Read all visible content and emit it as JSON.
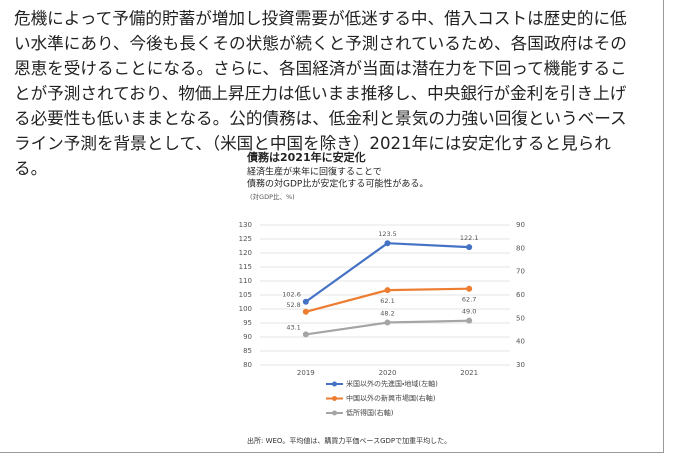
{
  "paragraph": {
    "lines": [
      "危機によって予備的貯蓄が増加し投資需要が低迷する中、借入コストは歴史的に低",
      "い水準にあり、今後も長くその状態が続くと予測されているため、各国政府はその",
      "恩恵を受けることになる。さらに、各国経済が当面は潜在力を下回って機能するこ",
      "とが予測されており、物価上昇圧力は低いまま推移し、中央銀行が金利を引き上げ",
      "る必要性も低いままとなる。公的債務は、低金利と景気の力強い回復というベース",
      "ライン予測を背景として、（米国と中国を除き）2021年には安定化すると見られ",
      "る。"
    ]
  },
  "chart_data": {
    "type": "line",
    "title": "債務は2021年に安定化",
    "subtitle": [
      "経済生産が来年に回復することで",
      "債務の対GDP比が安定化する可能性がある。"
    ],
    "unit_label": "(対GDP比、%)",
    "categories": [
      "2019",
      "2020",
      "2021"
    ],
    "series": [
      {
        "name": "米国以外の先進国・地域(左軸)",
        "color": "#4472c4",
        "axis": "y",
        "values": [
          102.6,
          123.5,
          122.1
        ]
      },
      {
        "name": "中国以外の新興市場国(右軸)",
        "color": "#ed7d31",
        "axis": "y2",
        "values": [
          52.8,
          62.1,
          62.7
        ]
      },
      {
        "name": "低所得国(右軸)",
        "color": "#a5a5a5",
        "axis": "y2",
        "values": [
          43.1,
          48.2,
          49.0
        ],
        "value_labels": [
          "43.1",
          "48.2",
          "49.0"
        ]
      }
    ],
    "ylim": [
      80,
      130
    ],
    "yticks": [
      80,
      85,
      90,
      95,
      100,
      105,
      110,
      115,
      120,
      125,
      130
    ],
    "y2lim": [
      30,
      90
    ],
    "y2ticks": [
      30,
      40,
      50,
      60,
      70,
      80,
      90
    ],
    "grid": true,
    "source": "出所: WEO。平均値は、購買力平価ベースGDPで加重平均した。"
  }
}
